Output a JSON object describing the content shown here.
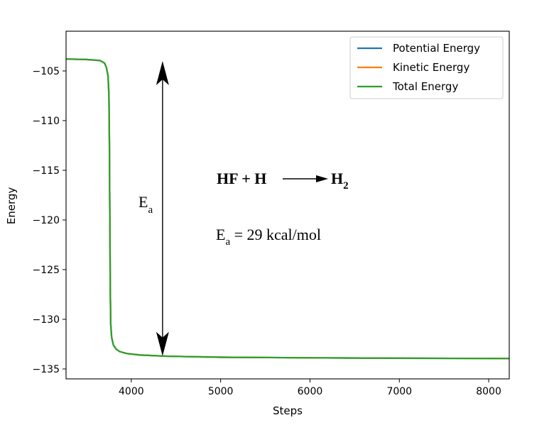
{
  "chart_data": {
    "type": "line",
    "title": "",
    "xlabel": "Steps",
    "ylabel": "Energy",
    "xlim": [
      3270,
      8230
    ],
    "ylim": [
      -136,
      -101
    ],
    "xticks": [
      4000,
      5000,
      6000,
      7000,
      8000
    ],
    "yticks": [
      -135,
      -130,
      -125,
      -120,
      -115,
      -110,
      -105
    ],
    "xtick_labels": [
      "4000",
      "5000",
      "6000",
      "7000",
      "8000"
    ],
    "ytick_labels": [
      "−135",
      "−130",
      "−125",
      "−120",
      "−115",
      "−110",
      "−105"
    ],
    "grid": false,
    "legend_position": "top-right",
    "series": [
      {
        "name": "Potential Energy",
        "color": "#1f77b4",
        "x": [
          3270,
          3500,
          3650,
          3700,
          3720,
          3740,
          3750,
          3755,
          3760,
          3765,
          3770,
          3780,
          3800,
          3830,
          3870,
          3950,
          4100,
          4400,
          5000,
          6000,
          7000,
          8230
        ],
        "y": [
          -103.8,
          -103.85,
          -103.95,
          -104.2,
          -104.6,
          -105.5,
          -107.5,
          -112,
          -120,
          -127,
          -130.5,
          -131.8,
          -132.6,
          -133.0,
          -133.25,
          -133.45,
          -133.6,
          -133.72,
          -133.82,
          -133.88,
          -133.92,
          -133.95
        ]
      },
      {
        "name": "Kinetic Energy",
        "color": "#ff7f0e",
        "x": [
          3270,
          3500,
          3650,
          3700,
          3720,
          3740,
          3750,
          3755,
          3760,
          3765,
          3770,
          3780,
          3800,
          3830,
          3870,
          3950,
          4100,
          4400,
          5000,
          6000,
          7000,
          8230
        ],
        "y": [
          -103.8,
          -103.85,
          -103.95,
          -104.2,
          -104.6,
          -105.5,
          -107.5,
          -112,
          -120,
          -127,
          -130.5,
          -131.8,
          -132.6,
          -133.0,
          -133.25,
          -133.45,
          -133.6,
          -133.72,
          -133.82,
          -133.88,
          -133.92,
          -133.95
        ]
      },
      {
        "name": "Total Energy",
        "color": "#2ca02c",
        "x": [
          3270,
          3500,
          3650,
          3700,
          3720,
          3740,
          3750,
          3755,
          3760,
          3765,
          3770,
          3780,
          3800,
          3830,
          3870,
          3950,
          4100,
          4400,
          5000,
          6000,
          7000,
          8230
        ],
        "y": [
          -103.8,
          -103.85,
          -103.95,
          -104.2,
          -104.6,
          -105.5,
          -107.5,
          -112,
          -120,
          -127,
          -130.5,
          -131.8,
          -132.6,
          -133.0,
          -133.25,
          -133.45,
          -133.6,
          -133.72,
          -133.82,
          -133.88,
          -133.92,
          -133.95
        ]
      }
    ],
    "annotations": {
      "arrow": {
        "x": 4350,
        "y_top": -104,
        "y_bottom": -133.7,
        "label_main": "E",
        "label_sub": "a"
      },
      "reaction": {
        "left": "HF + H",
        "right_main": "H",
        "right_sub": "2"
      },
      "activation": {
        "main": "E",
        "sub": "a",
        "rest": " = 29 kcal/mol"
      }
    }
  }
}
